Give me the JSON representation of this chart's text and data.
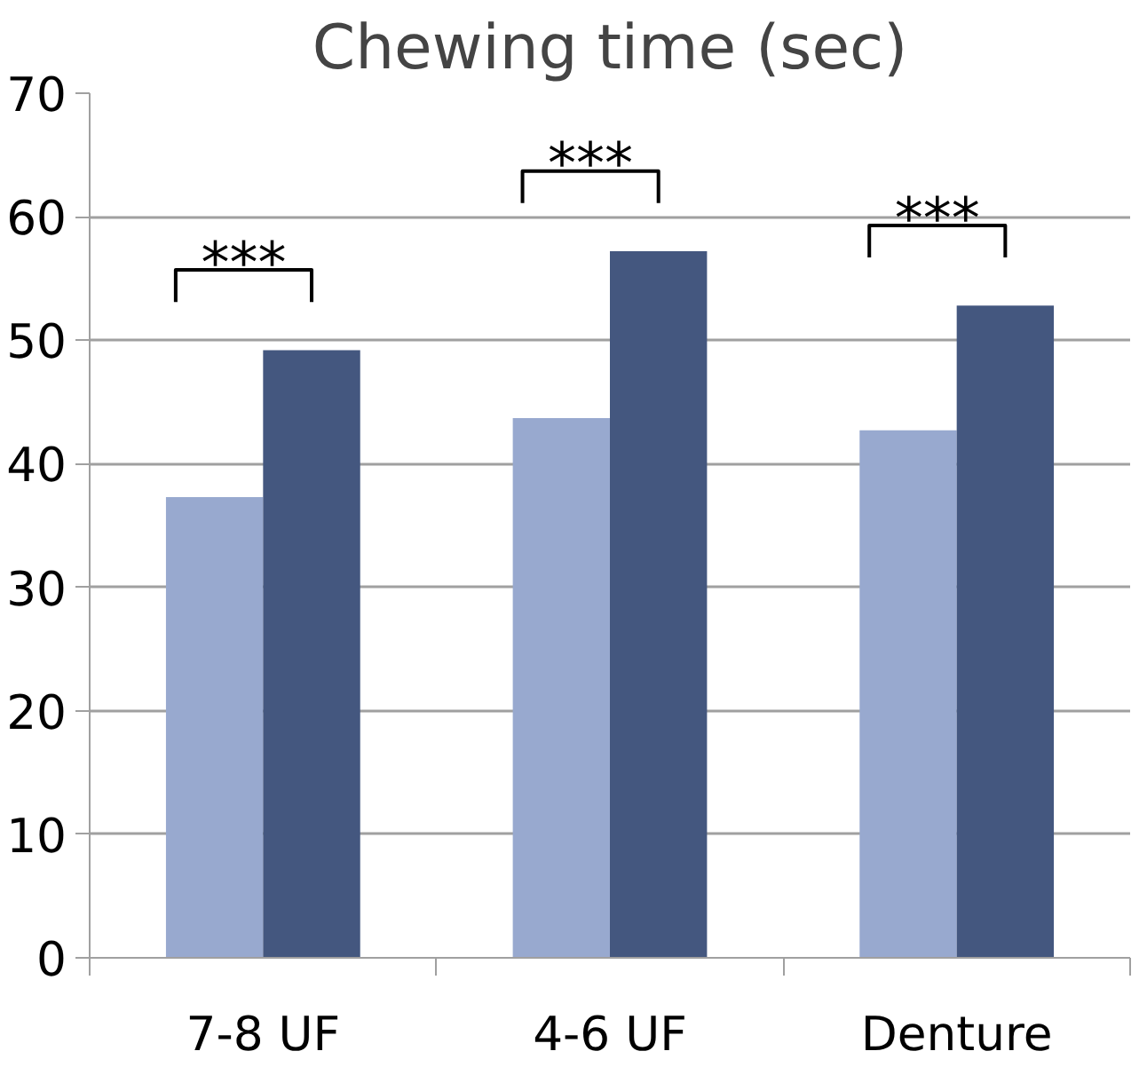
{
  "chart_data": {
    "type": "bar",
    "title": "Chewing time (sec)",
    "categories": [
      "7-8 UF",
      "4-6 UF",
      "Denture"
    ],
    "series": [
      {
        "color": "#98a9cf",
        "values": [
          37.3,
          43.7,
          42.7
        ]
      },
      {
        "color": "#44577f",
        "values": [
          49.2,
          57.2,
          52.8
        ]
      }
    ],
    "ylim": [
      0,
      70
    ],
    "yticks": [
      0,
      10,
      20,
      30,
      40,
      50,
      60,
      70
    ],
    "grid": "y",
    "annotations": [
      "***",
      "***",
      "***"
    ]
  }
}
